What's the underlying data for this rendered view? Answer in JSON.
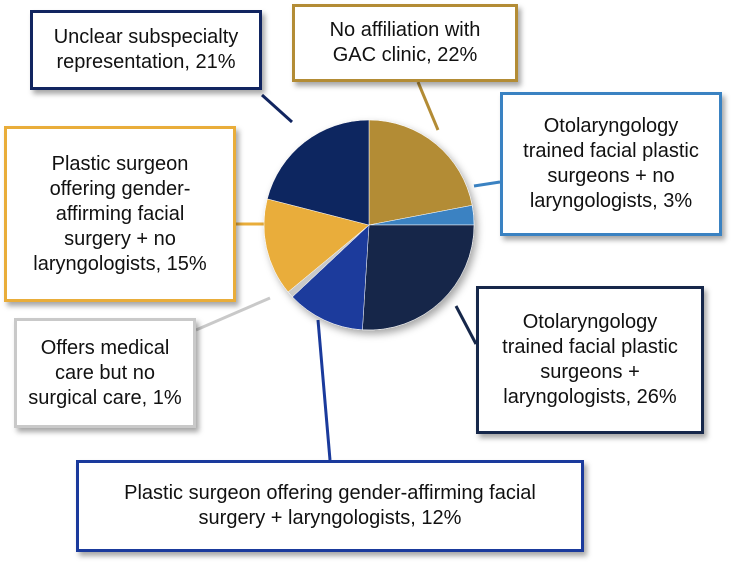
{
  "chart_data": {
    "type": "pie",
    "title": "",
    "slices": [
      {
        "label": "No affiliation with GAC clinic, 22%",
        "value": 22,
        "color": "#b38c35"
      },
      {
        "label": "Otolaryngology trained facial plastic surgeons + no laryngologists, 3%",
        "value": 3,
        "color": "#3a82c2"
      },
      {
        "label": "Otolaryngology trained facial plastic surgeons + laryngologists, 26%",
        "value": 26,
        "color": "#16274a"
      },
      {
        "label": "Plastic surgeon offering gender-affirming facial surgery + laryngologists, 12%",
        "value": 12,
        "color": "#1a3a9c"
      },
      {
        "label": "Offers medical care but no surgical care, 1%",
        "value": 1,
        "color": "#c9c9c9"
      },
      {
        "label": "Plastic surgeon offering gender-affirming facial surgery + no laryngologists, 15%",
        "value": 15,
        "color": "#e9ad3a"
      },
      {
        "label": "Unclear subspecialty representation, 21%",
        "value": 21,
        "color": "#112560"
      }
    ],
    "legend": "callouts"
  },
  "callouts": [
    {
      "lines": [
        "Unclear subspecialty",
        "representation, 21%"
      ],
      "border": "#112560"
    },
    {
      "lines": [
        "No affiliation with",
        "GAC clinic, 22%"
      ],
      "border": "#b38c35"
    },
    {
      "lines": [
        "Otolaryngology",
        "trained facial plastic",
        "surgeons + no",
        "laryngologists, 3%"
      ],
      "border": "#3a82c2"
    },
    {
      "lines": [
        "Plastic surgeon",
        "offering gender-",
        "affirming facial",
        "surgery + no",
        "laryngologists, 15%"
      ],
      "border": "#e9ad3a"
    },
    {
      "lines": [
        "Offers medical",
        "care but no",
        "surgical care, 1%"
      ],
      "border": "#c9c9c9"
    },
    {
      "lines": [
        "Otolaryngology",
        "trained facial plastic",
        "surgeons +",
        "laryngologists, 26%"
      ],
      "border": "#16274a"
    },
    {
      "lines": [
        "Plastic surgeon offering gender-affirming facial",
        "surgery + laryngologists, 12%"
      ],
      "border": "#1a3a9c"
    }
  ]
}
